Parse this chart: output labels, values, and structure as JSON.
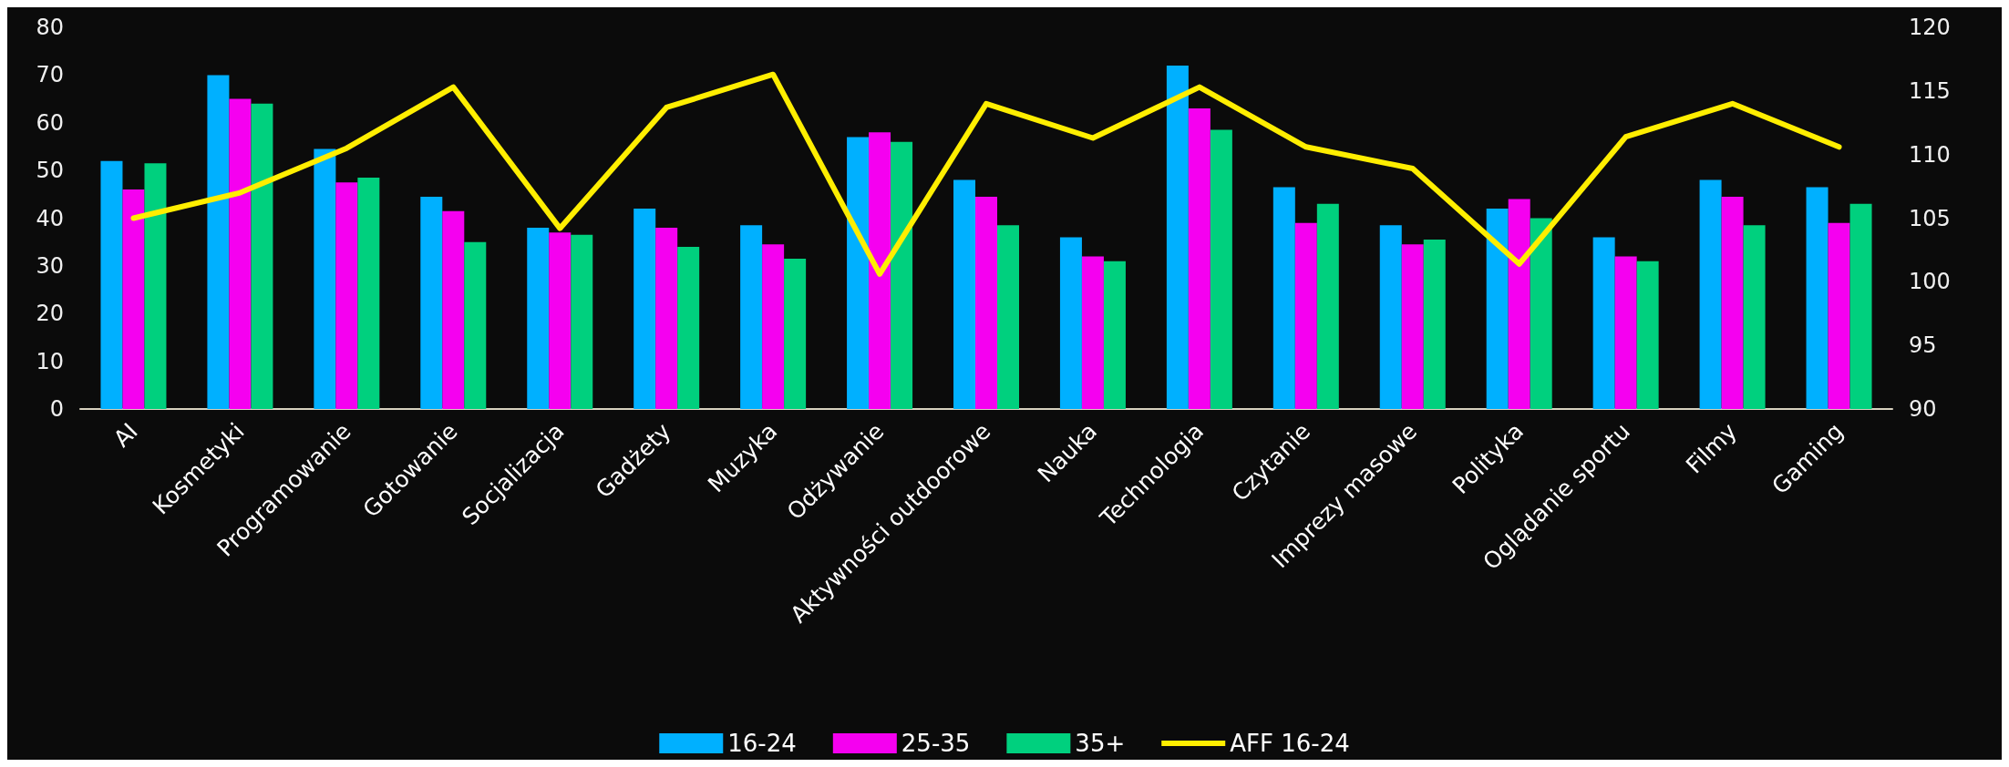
{
  "chart_data": {
    "type": "bar",
    "categories": [
      "AI",
      "Kosmetyki",
      "Programowanie",
      "Gotowanie",
      "Socjalizacja",
      "Gadżety",
      "Muzyka",
      "Odżywanie",
      "Aktywności outdoorowe",
      "Nauka",
      "Technologia",
      "Czytanie",
      "Imprezy masowe",
      "Polityka",
      "Oglądanie sportu",
      "Filmy",
      "Gaming"
    ],
    "series": [
      {
        "name": "16-24",
        "color": "#00b0ff",
        "values": [
          52,
          70,
          54.5,
          44.5,
          38,
          42,
          38.5,
          57,
          48,
          36,
          72,
          46.5,
          38.5,
          42,
          36,
          48,
          46.5
        ]
      },
      {
        "name": "25-35",
        "color": "#f500f0",
        "values": [
          46,
          65,
          47.5,
          41.5,
          37,
          38,
          34.5,
          58,
          44.5,
          32,
          63,
          39,
          34.5,
          44,
          32,
          44.5,
          39
        ]
      },
      {
        "name": "35+",
        "color": "#00d07e",
        "values": [
          51.5,
          64,
          48.5,
          35,
          36.5,
          34,
          31.5,
          56,
          38.5,
          31,
          58.5,
          43,
          35.5,
          40,
          31,
          38.5,
          43
        ]
      },
      {
        "name": "AFF 16-24",
        "type": "line",
        "axis": "y2",
        "color": "#ffee00",
        "values": [
          105,
          107,
          110.5,
          115.3,
          104.2,
          113.7,
          116.3,
          100.6,
          114,
          111.3,
          115.3,
          110.6,
          108.9,
          101.4,
          111.4,
          114,
          110.6
        ]
      }
    ],
    "ylim": [
      0,
      80
    ],
    "yticks": [
      0,
      10,
      20,
      30,
      40,
      50,
      60,
      70,
      80
    ],
    "y2lim": [
      90,
      120
    ],
    "y2ticks": [
      90,
      95,
      100,
      105,
      110,
      115,
      120
    ],
    "grid": false,
    "legend": "bottom",
    "marker": "none",
    "line_style": "solid"
  }
}
